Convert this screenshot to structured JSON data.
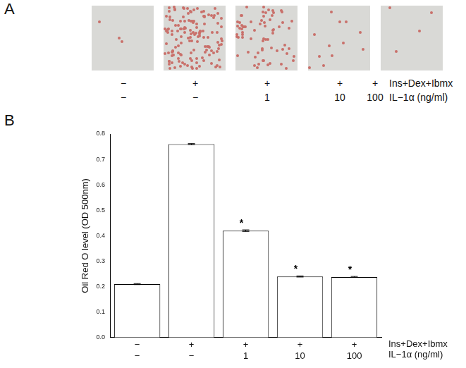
{
  "panel_a": {
    "label": "A",
    "rows": [
      {
        "label": "Ins+Dex+Ibmx",
        "values": [
          "−",
          "+",
          "+",
          "+",
          "+"
        ]
      },
      {
        "label": "IL−1α (ng/ml)",
        "values": [
          "−",
          "−",
          "1",
          "10",
          "100"
        ]
      }
    ]
  },
  "panel_b": {
    "label": "B"
  },
  "chart_data": {
    "type": "bar",
    "y_label": "Oil Red O level (OD 500nm)",
    "categories": [
      [
        "−",
        "−"
      ],
      [
        "+",
        "−"
      ],
      [
        "+",
        "1"
      ],
      [
        "+",
        "10"
      ],
      [
        "+",
        "100"
      ]
    ],
    "row_labels": [
      "Ins+Dex+Ibmx",
      "IL−1α (ng/ml)"
    ],
    "values": [
      0.21,
      0.76,
      0.42,
      0.24,
      0.238
    ],
    "errors": [
      0.002,
      0.002,
      0.003,
      0.002,
      0.002
    ],
    "annotations": [
      null,
      null,
      "*",
      "*",
      "*"
    ],
    "color": "#ffffff",
    "ylim": [
      0,
      0.8
    ],
    "yticks": [
      {
        "value": 0,
        "label": "0.0"
      },
      0.1,
      0.2,
      0.3,
      0.4,
      0.5,
      0.6,
      0.7,
      0.8
    ],
    "grid": false
  }
}
